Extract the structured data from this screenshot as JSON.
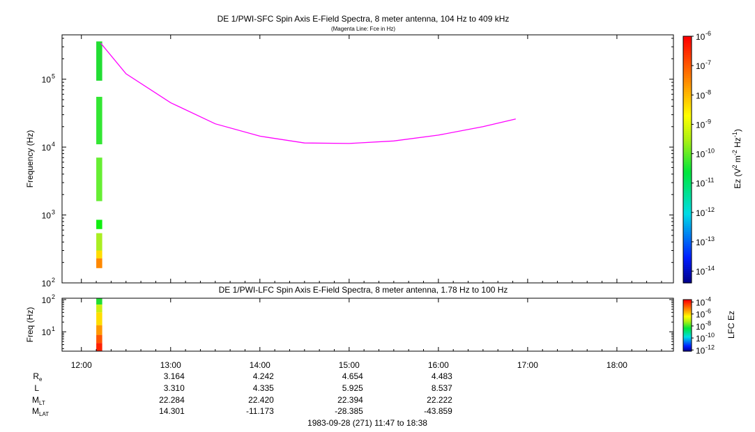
{
  "chart_data": [
    {
      "type": "heatmap",
      "title": "DE 1/PWI-SFC  Spin Axis E-Field Spectra, 8 meter antenna, 104 Hz to 409 kHz",
      "subtitle": "(Magenta Line: Fce in Hz)",
      "ylabel": "Frequency (Hz)",
      "yscale": "log",
      "ylim": [
        100,
        450000
      ],
      "yticks": [
        {
          "base": "10",
          "exp": "2",
          "value": 100
        },
        {
          "base": "10",
          "exp": "3",
          "value": 1000
        },
        {
          "base": "10",
          "exp": "4",
          "value": 10000
        },
        {
          "base": "10",
          "exp": "5",
          "value": 100000
        }
      ],
      "colorbar": {
        "label_main": "Ez (V",
        "label_sup1": "2",
        "label_mid": " m",
        "label_sup2": "-2",
        "label_mid2": " Hz",
        "label_sup3": "-1",
        "label_end": ")",
        "scale": "log",
        "ticks": [
          {
            "base": "10",
            "exp": "-6",
            "value": -6
          },
          {
            "base": "10",
            "exp": "-7",
            "value": -7
          },
          {
            "base": "10",
            "exp": "-8",
            "value": -8
          },
          {
            "base": "10",
            "exp": "-9",
            "value": -9
          },
          {
            "base": "10",
            "exp": "-10",
            "value": -10
          },
          {
            "base": "10",
            "exp": "-11",
            "value": -11
          },
          {
            "base": "10",
            "exp": "-12",
            "value": -12
          },
          {
            "base": "10",
            "exp": "-13",
            "value": -13
          },
          {
            "base": "10",
            "exp": "-14",
            "value": -14
          }
        ],
        "range": [
          -14.4,
          -6
        ]
      },
      "time_window": [
        "12:10",
        "12:14"
      ],
      "spectra": [
        {
          "f": [
            360000,
            95000
          ],
          "color": "#22dd33"
        },
        {
          "f": [
            55000,
            11000
          ],
          "color": "#33e633"
        },
        {
          "f": [
            7000,
            1600
          ],
          "color": "#66ee33"
        },
        {
          "f": [
            850,
            620
          ],
          "color": "#11ee11"
        },
        {
          "f": [
            540,
            300
          ],
          "color": "#aaee22"
        },
        {
          "f": [
            300,
            230
          ],
          "color": "#ffdd00"
        },
        {
          "f": [
            230,
            165
          ],
          "color": "#ff8800"
        }
      ],
      "fce_line": {
        "color": "#ff00ff",
        "points": [
          {
            "t": "12:13",
            "f": 340000
          },
          {
            "t": "12:30",
            "f": 120000
          },
          {
            "t": "13:00",
            "f": 45000
          },
          {
            "t": "13:30",
            "f": 22000
          },
          {
            "t": "14:00",
            "f": 14500
          },
          {
            "t": "14:30",
            "f": 11500
          },
          {
            "t": "15:00",
            "f": 11300
          },
          {
            "t": "15:30",
            "f": 12300
          },
          {
            "t": "16:00",
            "f": 15000
          },
          {
            "t": "16:30",
            "f": 20000
          },
          {
            "t": "16:52",
            "f": 26000
          }
        ]
      }
    },
    {
      "type": "heatmap",
      "title": "DE 1/PWI-LFC  Spin Axis E-Field Spectra, 8 meter antenna, 1.78 Hz to 100 Hz",
      "ylabel": "Freq (Hz)",
      "yscale": "log",
      "ylim": [
        2.5,
        110
      ],
      "yticks": [
        {
          "base": "10",
          "exp": "1",
          "value": 10
        },
        {
          "base": "10",
          "exp": "2",
          "value": 100
        }
      ],
      "colorbar": {
        "label": "LFC Ez",
        "scale": "log",
        "ticks": [
          {
            "base": "10",
            "exp": "-4",
            "value": -4
          },
          {
            "base": "10",
            "exp": "-6",
            "value": -6
          },
          {
            "base": "10",
            "exp": "-8",
            "value": -8
          },
          {
            "base": "10",
            "exp": "-10",
            "value": -10
          },
          {
            "base": "10",
            "exp": "-12",
            "value": -12
          }
        ],
        "range": [
          -12.2,
          -3.6
        ]
      },
      "time_window": [
        "12:10",
        "12:14"
      ],
      "spectra": [
        {
          "f": [
            110,
            70
          ],
          "color": "#22dd33"
        },
        {
          "f": [
            70,
            40
          ],
          "color": "#ccee11"
        },
        {
          "f": [
            40,
            16
          ],
          "color": "#ffdd00"
        },
        {
          "f": [
            16,
            8
          ],
          "color": "#ff9900"
        },
        {
          "f": [
            8,
            4.5
          ],
          "color": "#ff5500"
        },
        {
          "f": [
            4.5,
            2.5
          ],
          "color": "#ff2200"
        }
      ]
    }
  ],
  "x_axis": {
    "range": [
      "11:47",
      "18:38"
    ],
    "ticks": [
      "12:00",
      "13:00",
      "14:00",
      "15:00",
      "16:00",
      "17:00",
      "18:00"
    ]
  },
  "ephemeris": {
    "columns": [
      "13:00",
      "14:00",
      "15:00",
      "16:00"
    ],
    "rows": [
      {
        "label": "R",
        "sub": "e",
        "values": [
          "3.164",
          "4.242",
          "4.654",
          "4.483"
        ]
      },
      {
        "label": "L",
        "sub": "",
        "values": [
          "3.310",
          "4.335",
          "5.925",
          "8.537"
        ]
      },
      {
        "label": "M",
        "sub": "LT",
        "values": [
          "22.284",
          "22.420",
          "22.394",
          "22.222"
        ]
      },
      {
        "label": "M",
        "sub": "LAT",
        "values": [
          "14.301",
          "-11.173",
          "-28.385",
          "-43.859"
        ]
      }
    ]
  },
  "footer": "1983-09-28 (271) 11:47 to 18:38"
}
